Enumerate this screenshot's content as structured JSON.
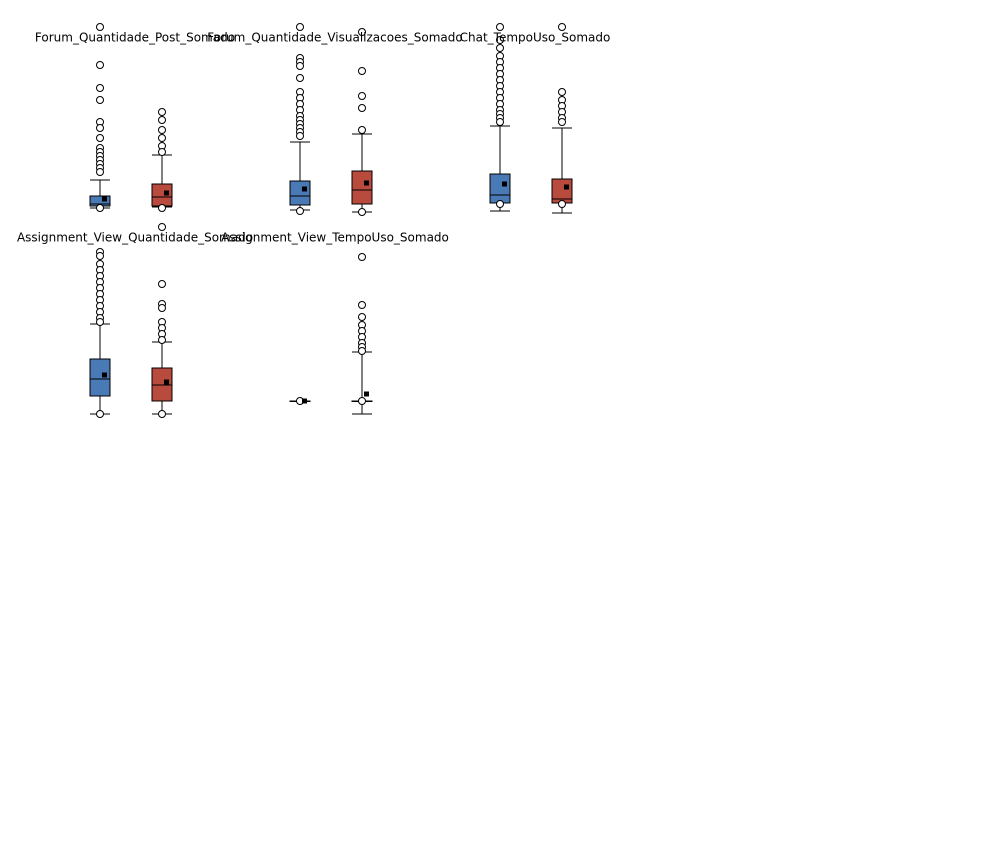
{
  "chart_data": [
    {
      "type": "box",
      "title": "Forum_Quantidade_Post_Somado",
      "ylim": [
        0,
        200
      ],
      "series": [
        {
          "color": "#4a7ab5",
          "min": 20,
          "q1": 22,
          "median": 24,
          "q3": 32,
          "max": 48,
          "mean": 29,
          "outliers": [
            201,
            163,
            140,
            128,
            106,
            100,
            90,
            80,
            76,
            72,
            68,
            64,
            60,
            56,
            20
          ]
        },
        {
          "color": "#b84a3e",
          "min": 21,
          "q1": 22,
          "median": 31,
          "q3": 44,
          "max": 73,
          "mean": 35,
          "outliers": [
            116,
            108,
            98,
            90,
            82,
            76,
            20,
            1
          ]
        }
      ]
    },
    {
      "type": "box",
      "title": "Forum_Quantidade_Visualizacoes_Somado",
      "ylim": [
        0,
        200
      ],
      "series": [
        {
          "color": "#4a7ab5",
          "min": 18,
          "q1": 23,
          "median": 32,
          "q3": 47,
          "max": 86,
          "mean": 39,
          "outliers": [
            201,
            170,
            166,
            162,
            150,
            136,
            130,
            124,
            118,
            112,
            108,
            104,
            100,
            96,
            92,
            17
          ]
        },
        {
          "color": "#b84a3e",
          "min": 16,
          "q1": 24,
          "median": 38,
          "q3": 57,
          "max": 94,
          "mean": 45,
          "outliers": [
            196,
            157,
            132,
            120,
            98,
            16
          ]
        }
      ]
    },
    {
      "type": "box",
      "title": "Chat_TempoUso_Somado",
      "ylim": [
        0,
        200
      ],
      "series": [
        {
          "color": "#4a7ab5",
          "min": 17,
          "q1": 25,
          "median": 33,
          "q3": 54,
          "max": 102,
          "mean": 44,
          "outliers": [
            201,
            188,
            180,
            172,
            166,
            160,
            154,
            148,
            142,
            136,
            130,
            124,
            118,
            114,
            110,
            106,
            24
          ]
        },
        {
          "color": "#b84a3e",
          "min": 15,
          "q1": 25,
          "median": 29,
          "q3": 49,
          "max": 100,
          "mean": 41,
          "outliers": [
            201,
            136,
            128,
            122,
            116,
            110,
            106,
            24
          ]
        }
      ]
    },
    {
      "type": "box",
      "title": "Assignment_View_Quantidade_Somado",
      "ylim": [
        0,
        200
      ],
      "series": [
        {
          "color": "#4a7ab5",
          "min": 14,
          "q1": 32,
          "median": 49,
          "q3": 69,
          "max": 104,
          "mean": 53,
          "outliers": [
            176,
            172,
            164,
            158,
            152,
            146,
            140,
            134,
            128,
            122,
            116,
            110,
            106,
            14
          ]
        },
        {
          "color": "#b84a3e",
          "min": 14,
          "q1": 27,
          "median": 43,
          "q3": 60,
          "max": 86,
          "mean": 46,
          "outliers": [
            144,
            124,
            120,
            106,
            100,
            94,
            88,
            14
          ]
        }
      ]
    },
    {
      "type": "box",
      "title": "Assignment_View_TempoUso_Somado",
      "ylim": [
        0,
        200
      ],
      "series": [
        {
          "color": "#4a7ab5",
          "min": 27,
          "q1": 27,
          "median": 27,
          "q3": 27,
          "max": 27,
          "mean": 27,
          "outliers": [
            27
          ]
        },
        {
          "color": "#b84a3e",
          "min": 14,
          "q1": 27,
          "median": 27,
          "q3": 27,
          "max": 76,
          "mean": 34,
          "outliers": [
            171,
            123,
            111,
            103,
            97,
            91,
            85,
            81,
            77,
            27
          ]
        }
      ]
    }
  ]
}
